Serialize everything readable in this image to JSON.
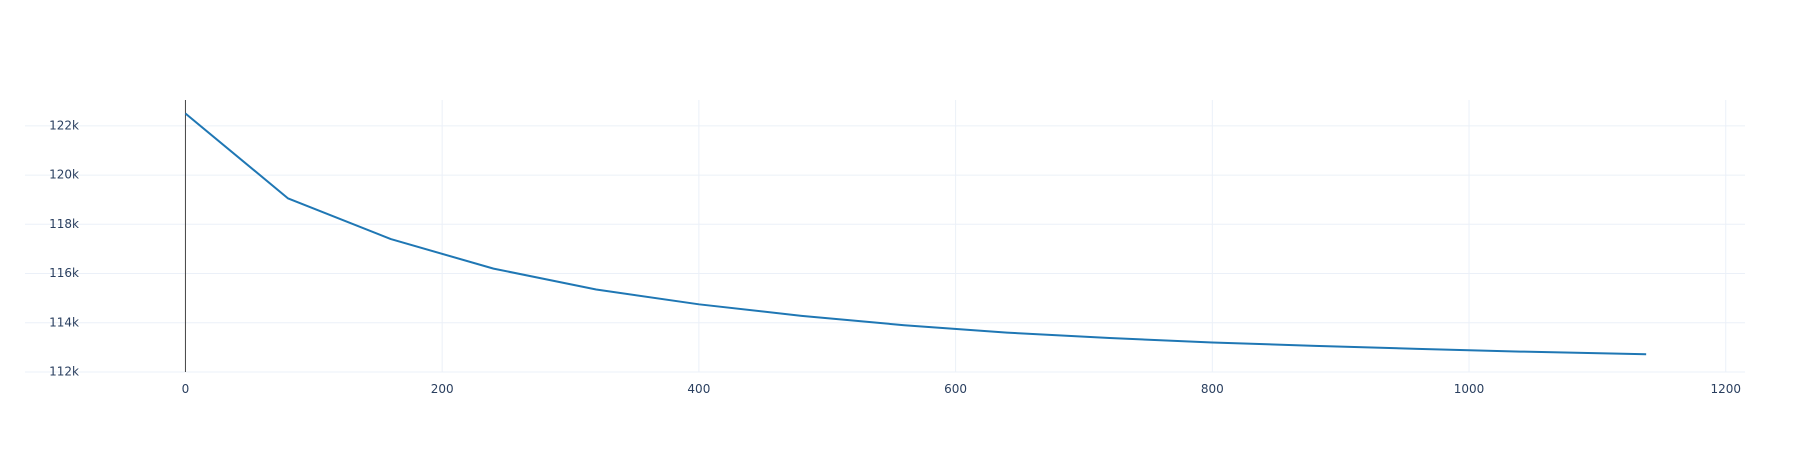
{
  "chart_data": {
    "type": "line",
    "title": "",
    "xlabel": "",
    "ylabel": "",
    "xlim": [
      -125,
      1215
    ],
    "ylim": [
      112000,
      123050
    ],
    "x_ticks": [
      0,
      200,
      400,
      600,
      800,
      1000,
      1200
    ],
    "x_tick_labels": [
      "0",
      "200",
      "400",
      "600",
      "800",
      "1000",
      "1200"
    ],
    "y_ticks": [
      112000,
      114000,
      116000,
      118000,
      120000,
      122000
    ],
    "y_tick_labels": [
      "112k",
      "114k",
      "116k",
      "118k",
      "120k",
      "122k"
    ],
    "grid": true,
    "legend": "none",
    "series": [
      {
        "color": "#1f77b4",
        "x": [
          0,
          80,
          160,
          240,
          320,
          400,
          480,
          560,
          640,
          720,
          800,
          880,
          960,
          1040,
          1138
        ],
        "y": [
          122500,
          119050,
          117400,
          116200,
          115350,
          114750,
          114280,
          113900,
          113600,
          113380,
          113200,
          113060,
          112940,
          112830,
          112720
        ]
      }
    ]
  }
}
